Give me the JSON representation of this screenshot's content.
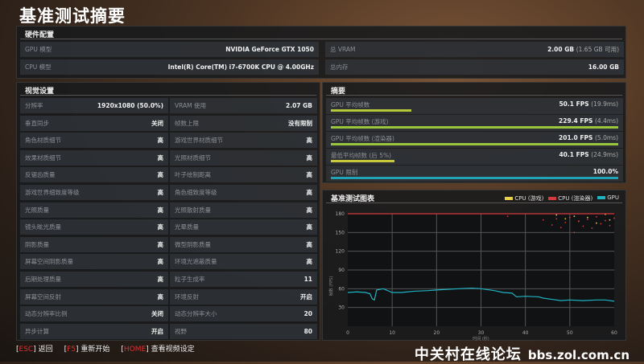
{
  "title": "基准测试摘要",
  "hardware": {
    "header": "硬件配置",
    "rows": [
      {
        "label": "GPU 模型",
        "value": "NVIDIA GeForce GTX 1050"
      },
      {
        "label": "CPU 模型",
        "value": "Intel(R) Core(TM) i7-6700K CPU @ 4.00GHz"
      },
      {
        "label": "总 VRAM",
        "value": "2.00 GB",
        "sub": "(1.65 GB 可用)"
      },
      {
        "label": "总内存",
        "value": "16.00 GB"
      }
    ]
  },
  "video": {
    "header": "视觉设置",
    "rows": [
      [
        {
          "label": "分辨率",
          "value": "1920x1080 (50.0%)"
        },
        {
          "label": "VRAM 使用",
          "value": "2.07 GB"
        }
      ],
      [
        {
          "label": "垂直同步",
          "value": "关闭"
        },
        {
          "label": "帧数上限",
          "value": "没有限制"
        }
      ],
      [
        {
          "label": "角色材质细节",
          "value": "高"
        },
        {
          "label": "游戏世界材质细节",
          "value": "高"
        }
      ],
      [
        {
          "label": "效果材质细节",
          "value": "高"
        },
        {
          "label": "光照材质细节",
          "value": "高"
        }
      ],
      [
        {
          "label": "反锯齿质量",
          "value": "高"
        },
        {
          "label": "叶子绘制距离",
          "value": "高"
        }
      ],
      [
        {
          "label": "游戏世界细致度等级",
          "value": "高"
        },
        {
          "label": "角色细致度等级",
          "value": "高"
        }
      ],
      [
        {
          "label": "光照质量",
          "value": "高"
        },
        {
          "label": "光照散射质量",
          "value": "高"
        }
      ],
      [
        {
          "label": "镜头眩光质量",
          "value": "高"
        },
        {
          "label": "光晕质量",
          "value": "高"
        }
      ],
      [
        {
          "label": "阴影质量",
          "value": "高"
        },
        {
          "label": "微型阴影质量",
          "value": "高"
        }
      ],
      [
        {
          "label": "屏幕空间阴影质量",
          "value": "高"
        },
        {
          "label": "环境光遮蔽质量",
          "value": "高"
        }
      ],
      [
        {
          "label": "后期处理质量",
          "value": "高"
        },
        {
          "label": "粒子生成率",
          "value": "11"
        }
      ],
      [
        {
          "label": "屏幕空间反射",
          "value": "高"
        },
        {
          "label": "环境反射",
          "value": "开启"
        }
      ],
      [
        {
          "label": "动态分辨率比例",
          "value": "关闭"
        },
        {
          "label": "动态分辨率大小",
          "value": "20"
        }
      ],
      [
        {
          "label": "异步计算",
          "value": "开启"
        },
        {
          "label": "视野",
          "value": "80"
        }
      ]
    ]
  },
  "summary": {
    "header": "摘要",
    "rows": [
      {
        "label": "GPU 平均帧数",
        "value": "50.1 FPS",
        "sub": "(19.9ms)",
        "fill": 0.28,
        "color": "#b5c938"
      },
      {
        "label": "GPU 平均帧数 (游戏)",
        "value": "229.4 FPS",
        "sub": "(4.4ms)",
        "fill": 1.0,
        "color": "#9bc53d"
      },
      {
        "label": "GPU 平均帧数 (渲染器)",
        "value": "201.0 FPS",
        "sub": "(5.0ms)",
        "fill": 1.0,
        "color": "#9bc53d"
      },
      {
        "label": "最低平均帧数 (后 5%)",
        "value": "40.1 FPS",
        "sub": "(24.9ms)",
        "fill": 0.22,
        "color": "#c8c83a"
      },
      {
        "label": "GPU 限制",
        "value": "100.0%",
        "fill": 1.0,
        "color": "#1fa3b5"
      }
    ]
  },
  "chart_data": {
    "type": "line",
    "title": "基准测试图表",
    "ylabel": "帧数 (FPS)",
    "xlabel": "时间 (秒)",
    "xlim": [
      0,
      60
    ],
    "ylim": [
      0,
      180
    ],
    "xticks": [
      0,
      10,
      20,
      30,
      40,
      50,
      60
    ],
    "yticks": [
      30,
      60,
      90,
      120,
      150,
      180
    ],
    "grid": true,
    "legend": "top-right",
    "series": [
      {
        "name": "CPU (游戏)",
        "color": "#e8d04a",
        "x": [
          47,
          49,
          51,
          52,
          54,
          56,
          58,
          59
        ],
        "y": [
          178,
          172,
          176,
          168,
          174,
          165,
          179,
          170
        ],
        "style": "scatter"
      },
      {
        "name": "CPU (渲染器)",
        "color": "#d6393e",
        "x": [
          0,
          60
        ],
        "y": [
          180,
          180
        ],
        "style": "line",
        "scatter_x": [
          36,
          44,
          46,
          47,
          48,
          49,
          50,
          51,
          52,
          53,
          54,
          55,
          56,
          57,
          58,
          59,
          60
        ],
        "scatter_y": [
          176,
          170,
          162,
          172,
          158,
          166,
          174,
          150,
          168,
          160,
          171,
          157,
          175,
          164,
          169,
          161,
          173
        ]
      },
      {
        "name": "GPU",
        "color": "#1fb3c2",
        "x": [
          0,
          2,
          4,
          5,
          5.5,
          6,
          6.5,
          8,
          10,
          12,
          15,
          18,
          20,
          25,
          28,
          30,
          33,
          35,
          37,
          38,
          40,
          43,
          44,
          46,
          48,
          50,
          53,
          56,
          58,
          60
        ],
        "y": [
          54,
          55,
          54,
          52,
          44,
          42,
          58,
          60,
          54,
          54,
          56,
          57,
          58,
          60,
          61,
          60,
          57,
          54,
          53,
          47,
          48,
          47,
          45,
          43,
          41,
          42,
          41,
          42,
          42,
          40
        ],
        "style": "line"
      }
    ]
  },
  "footer": [
    {
      "key": "ESC",
      "label": "返回"
    },
    {
      "key": "F5",
      "label": "重新开始"
    },
    {
      "key": "HOME",
      "label": "查看视频设定"
    }
  ],
  "watermark": {
    "line1": "中关村在线论坛",
    "line2": "bbs.zol.com.cn"
  }
}
